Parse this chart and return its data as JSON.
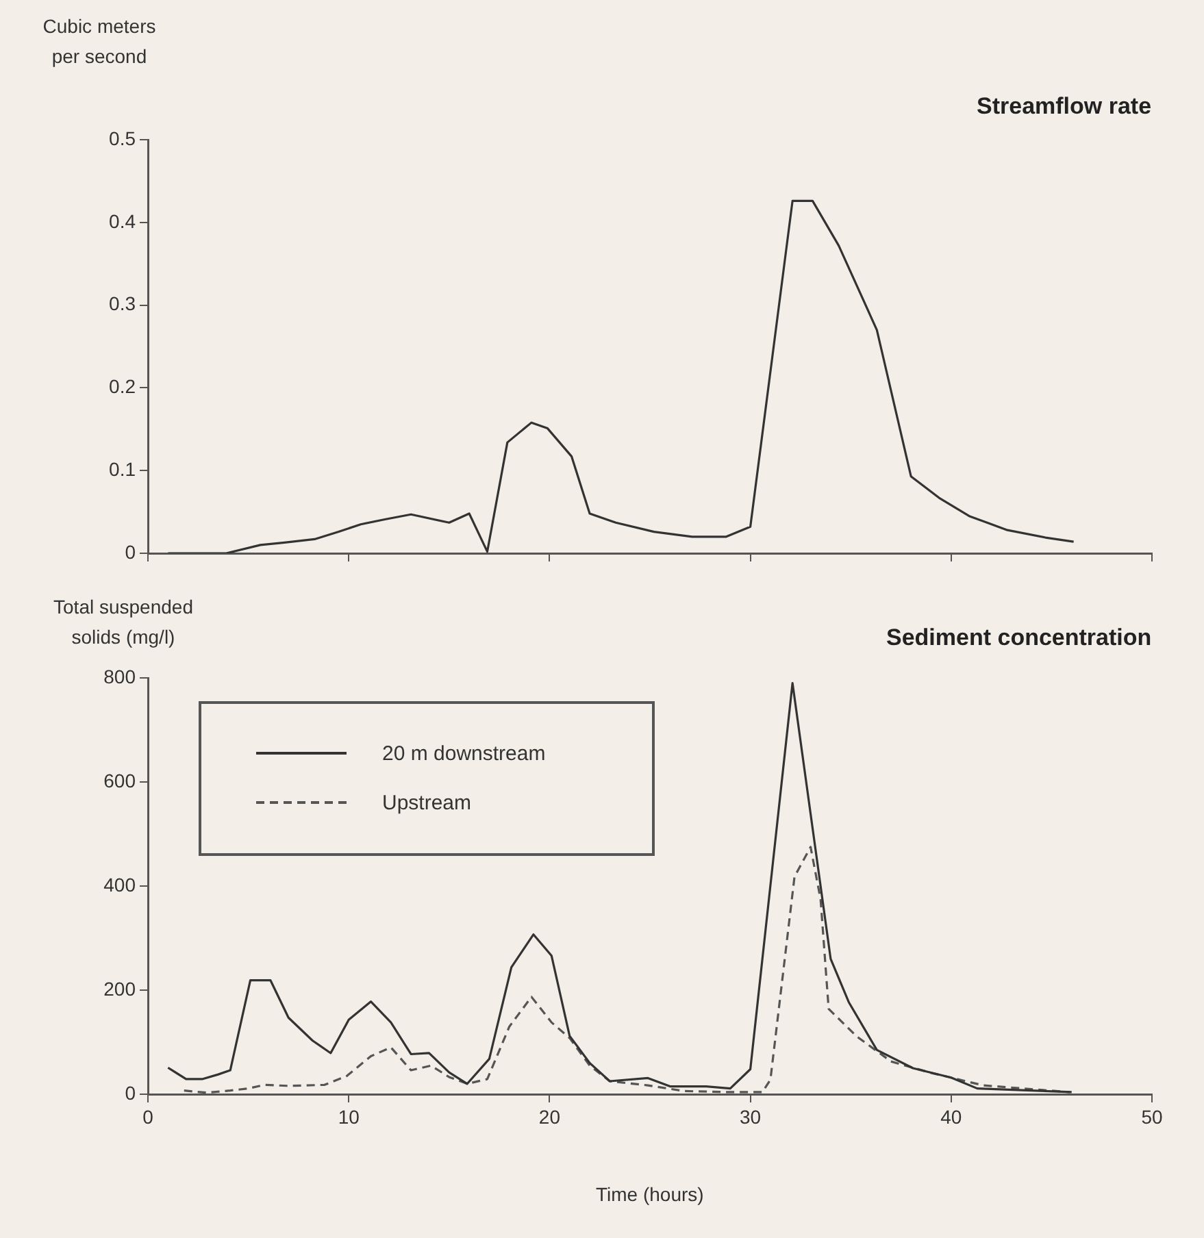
{
  "chart_data": [
    {
      "type": "line",
      "title": "Streamflow rate",
      "ylabel": "Cubic meters per second",
      "x": [
        1.0,
        3.0,
        3.9,
        5.6,
        6.8,
        8.3,
        9.5,
        10.6,
        11.8,
        13.1,
        15.0,
        16.0,
        16.9,
        17.9,
        19.1,
        19.9,
        21.1,
        22.0,
        23.3,
        25.2,
        27.1,
        28.8,
        30.0,
        32.1,
        33.1,
        34.4,
        36.3,
        38.0,
        39.4,
        40.9,
        42.8,
        44.7,
        46.1
      ],
      "values": [
        0.0,
        0.0,
        0.0,
        0.01,
        0.013,
        0.017,
        0.026,
        0.035,
        0.041,
        0.047,
        0.037,
        0.048,
        0.002,
        0.134,
        0.158,
        0.151,
        0.117,
        0.048,
        0.037,
        0.026,
        0.02,
        0.02,
        0.032,
        0.426,
        0.426,
        0.372,
        0.27,
        0.093,
        0.067,
        0.045,
        0.028,
        0.019,
        0.014
      ],
      "color": "#333333",
      "line_style": "solid",
      "marker": "none",
      "xlim": [
        0,
        50
      ],
      "xticks": [
        0,
        10,
        20,
        30,
        40,
        50
      ],
      "ylim": [
        0,
        0.5
      ],
      "yticks": [
        0,
        0.1,
        0.2,
        0.3,
        0.4,
        0.5
      ],
      "tick_labels": "y",
      "grid": false,
      "legend": false
    },
    {
      "type": "line",
      "title": "Sediment concentration",
      "ylabel": "Total suspended solids (mg/l)",
      "xlabel": "Time (hours)",
      "series": [
        {
          "name": "20 m downstream",
          "color": "#333333",
          "line_style": "solid",
          "x": [
            1.0,
            1.9,
            2.7,
            3.5,
            4.1,
            5.1,
            6.1,
            7.0,
            8.2,
            9.1,
            10.0,
            11.1,
            12.1,
            13.1,
            14.0,
            15.0,
            15.9,
            17.0,
            18.1,
            19.2,
            20.1,
            21.0,
            22.0,
            23.0,
            24.9,
            26.0,
            27.8,
            29.0,
            30.0,
            32.1,
            34.0,
            34.9,
            36.3,
            38.1,
            40.0,
            41.3,
            46.0
          ],
          "values": [
            51,
            29,
            29,
            38,
            46,
            219,
            219,
            147,
            103,
            79,
            143,
            178,
            138,
            77,
            79,
            42,
            20,
            68,
            244,
            307,
            266,
            112,
            60,
            25,
            31,
            15,
            15,
            11,
            48,
            790,
            260,
            177,
            85,
            50,
            32,
            11,
            4
          ]
        },
        {
          "name": "Upstream",
          "color": "#555555",
          "line_style": "dashed",
          "x": [
            1.8,
            2.9,
            4.1,
            5.0,
            5.8,
            7.0,
            8.8,
            9.9,
            11.1,
            12.1,
            13.1,
            14.1,
            15.0,
            15.9,
            16.9,
            18.0,
            19.1,
            20.1,
            21.0,
            22.0,
            23.0,
            24.9,
            26.7,
            29.0,
            30.6,
            31.0,
            32.2,
            33.0,
            33.5,
            33.9,
            35.3,
            37.0,
            39.0,
            41.6,
            45.9
          ],
          "values": [
            7,
            3,
            7,
            11,
            18,
            16,
            18,
            35,
            73,
            90,
            46,
            55,
            33,
            20,
            29,
            130,
            187,
            138,
            108,
            55,
            25,
            17,
            6,
            4,
            4,
            28,
            418,
            475,
            374,
            164,
            111,
            63,
            41,
            17,
            4
          ]
        }
      ],
      "marker": "none",
      "xlim": [
        0,
        50
      ],
      "xticks": [
        0,
        10,
        20,
        30,
        40,
        50
      ],
      "ylim": [
        0,
        800
      ],
      "yticks": [
        0,
        200,
        400,
        600,
        800
      ],
      "grid": false,
      "legend": "top left"
    }
  ]
}
